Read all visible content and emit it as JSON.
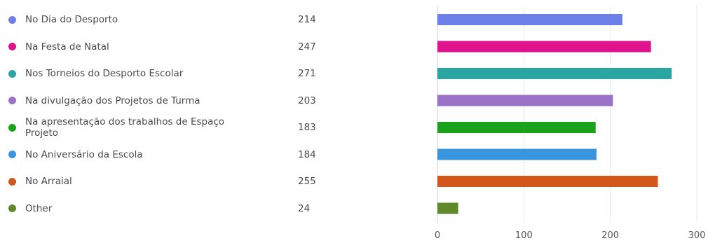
{
  "chart_data": {
    "type": "bar",
    "orientation": "horizontal",
    "categories": [
      "No Dia do Desporto",
      "Na Festa de Natal",
      "Nos Torneios do Desporto Escolar",
      "Na divulgação dos Projetos de Turma",
      "Na apresentação dos trabalhos de Espaço Projeto",
      "No Aniversário da Escola",
      "No Arraial",
      "Other"
    ],
    "values": [
      214,
      247,
      271,
      203,
      183,
      184,
      255,
      24
    ],
    "colors": [
      "#6d7fe8",
      "#e0128c",
      "#2aa6a2",
      "#9b72c7",
      "#1aa31a",
      "#3a95e0",
      "#d3561a",
      "#5e8a2a"
    ],
    "xlim": [
      0,
      300
    ],
    "xticks": [
      0,
      100,
      200,
      300
    ],
    "grid": true,
    "legend_placement": "left",
    "title": "",
    "xlabel": "",
    "ylabel": ""
  }
}
